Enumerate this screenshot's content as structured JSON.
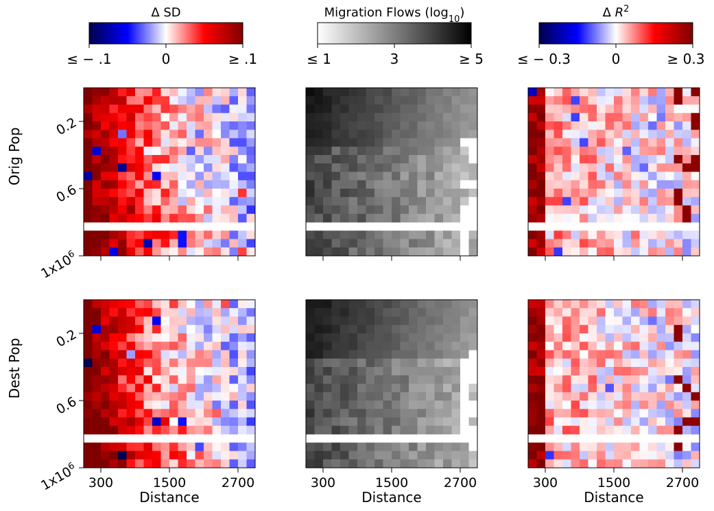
{
  "chart_data": [
    {
      "type": "heatmap",
      "title": "",
      "xlabel": "",
      "ylabel": "Orig Pop",
      "xticks": [
        300,
        1500,
        2700
      ],
      "xtick_labels": [
        "",
        "",
        ""
      ],
      "yticks": [
        "0.2",
        "0.6",
        "1x10^6"
      ],
      "colormap": "seismic",
      "colorbar_title": "Δ SD",
      "colorbar_ticks": [
        "≤ − .1",
        "0",
        "≥ .1"
      ]
    },
    {
      "type": "heatmap",
      "title": "",
      "xlabel": "",
      "ylabel": "",
      "xticks": [
        300,
        1500,
        2700
      ],
      "xtick_labels": [
        "",
        "",
        ""
      ],
      "colormap": "grays",
      "colorbar_title": "Migration Flows (log10)",
      "colorbar_ticks": [
        "≤ 1",
        "3",
        "≥ 5"
      ]
    },
    {
      "type": "heatmap",
      "title": "",
      "xlabel": "",
      "ylabel": "",
      "xticks": [
        300,
        1500,
        2700
      ],
      "xtick_labels": [
        "",
        "",
        ""
      ],
      "colormap": "seismic",
      "colorbar_title": "Δ R²",
      "colorbar_ticks": [
        "≤ − 0.3",
        "0",
        "≥ 0.3"
      ]
    },
    {
      "type": "heatmap",
      "title": "",
      "xlabel": "Distance",
      "ylabel": "Dest Pop",
      "xticks": [
        300,
        1500,
        2700
      ],
      "xtick_labels": [
        "300",
        "1500",
        "2700"
      ],
      "yticks": [
        "0.2",
        "0.6",
        "1x10^6"
      ],
      "colormap": "seismic"
    },
    {
      "type": "heatmap",
      "title": "",
      "xlabel": "Distance",
      "ylabel": "",
      "xticks": [
        300,
        1500,
        2700
      ],
      "xtick_labels": [
        "300",
        "1500",
        "2700"
      ],
      "colormap": "grays"
    },
    {
      "type": "heatmap",
      "title": "",
      "xlabel": "Distance",
      "ylabel": "",
      "xticks": [
        300,
        1500,
        2700
      ],
      "xtick_labels": [
        "300",
        "1500",
        "2700"
      ],
      "colormap": "seismic"
    }
  ]
}
